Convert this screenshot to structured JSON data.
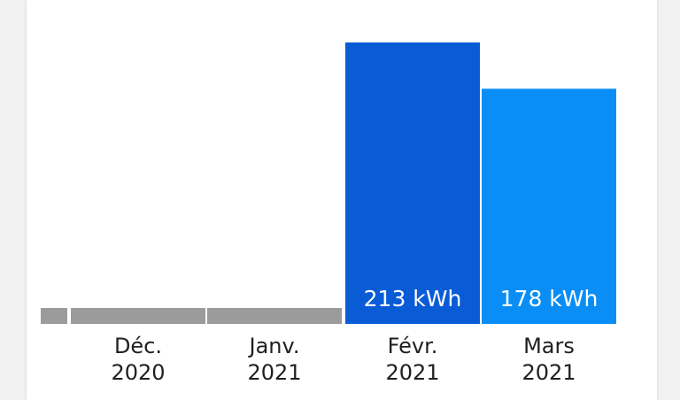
{
  "chart_data": {
    "type": "bar",
    "categories": [
      {
        "month": "Déc.",
        "year": "2020"
      },
      {
        "month": "Janv.",
        "year": "2021"
      },
      {
        "month": "Févr.",
        "year": "2021"
      },
      {
        "month": "Mars",
        "year": "2021"
      }
    ],
    "values": [
      null,
      null,
      213,
      178
    ],
    "value_labels": [
      "",
      "",
      "213 kWh",
      "178 kWh"
    ],
    "unit": "kWh",
    "ylim": [
      0,
      213
    ],
    "grid": false,
    "colors": {
      "no_data": "#9b9b9b",
      "bars": [
        "#9b9b9b",
        "#9b9b9b",
        "#0a5cd6",
        "#0a8ef5"
      ]
    }
  }
}
